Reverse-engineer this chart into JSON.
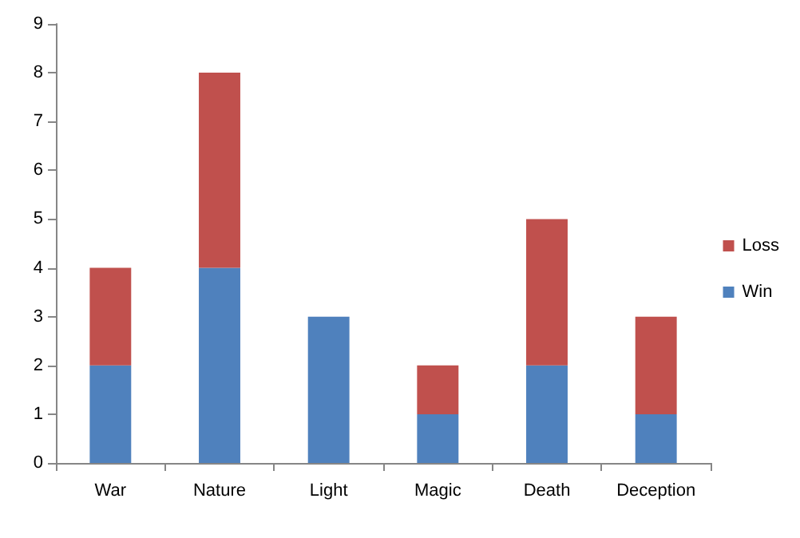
{
  "chart_data": {
    "type": "bar",
    "stacked": true,
    "categories": [
      "War",
      "Nature",
      "Light",
      "Magic",
      "Death",
      "Deception"
    ],
    "series": [
      {
        "name": "Win",
        "color": "#4f81bd",
        "values": [
          2,
          4,
          3,
          1,
          2,
          1
        ]
      },
      {
        "name": "Loss",
        "color": "#c0504d",
        "values": [
          2,
          4,
          0,
          1,
          3,
          2
        ]
      }
    ],
    "ylim": [
      0,
      9
    ],
    "yticks": [
      0,
      1,
      2,
      3,
      4,
      5,
      6,
      7,
      8,
      9
    ],
    "grid": false,
    "legend": "right"
  }
}
